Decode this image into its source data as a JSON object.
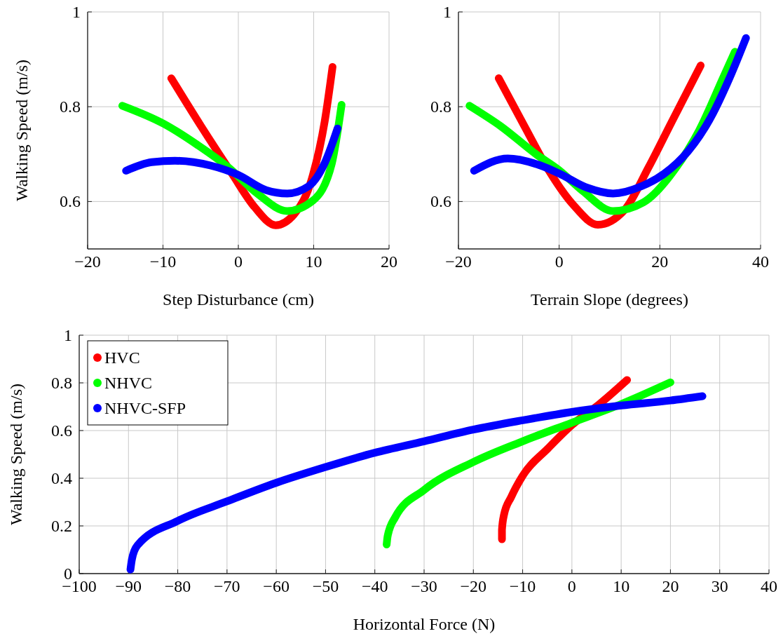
{
  "chart_data": [
    {
      "type": "line",
      "xlabel": "Step Disturbance (cm)",
      "ylabel": "Walking Speed (m/s)",
      "xlim": [
        -20,
        20
      ],
      "ylim": [
        0.5,
        1
      ],
      "xticks": [
        -20,
        -10,
        0,
        10,
        20
      ],
      "yticks": [
        0.6,
        0.8,
        1
      ],
      "grid": true,
      "legend": false,
      "series": [
        {
          "color": "#ff0000",
          "x": [
            -8.9,
            -4.95,
            -0.93,
            2.17,
            4.95,
            7.4,
            9.9,
            11.46,
            12.5
          ],
          "values": [
            0.86,
            0.759,
            0.661,
            0.588,
            0.55,
            0.573,
            0.656,
            0.769,
            0.884
          ]
        },
        {
          "color": "#00ff00",
          "x": [
            -15.4,
            -9.9,
            -5.3,
            -1.24,
            2.5,
            6.5,
            9.9,
            12.4,
            13.7
          ],
          "values": [
            0.802,
            0.764,
            0.718,
            0.671,
            0.617,
            0.58,
            0.602,
            0.68,
            0.804
          ]
        },
        {
          "color": "#0000ff",
          "x": [
            -14.9,
            -11.5,
            -8.4,
            -3.7,
            0,
            3.7,
            6.5,
            9.3,
            11.46,
            13.16
          ],
          "values": [
            0.665,
            0.683,
            0.686,
            0.676,
            0.656,
            0.624,
            0.617,
            0.632,
            0.681,
            0.754
          ]
        }
      ]
    },
    {
      "type": "line",
      "xlabel": "Terrain Slope (degrees)",
      "xlim": [
        -20,
        40
      ],
      "ylim": [
        0.5,
        1
      ],
      "xticks": [
        -20,
        0,
        20,
        40
      ],
      "yticks": [
        0.6,
        0.8,
        1
      ],
      "grid": true,
      "legend": false,
      "series": [
        {
          "color": "#ff0000",
          "x": [
            -12.0,
            -6.9,
            -1.8,
            2.8,
            7.7,
            13.05,
            17.7,
            22.4,
            28.1
          ],
          "values": [
            0.86,
            0.759,
            0.661,
            0.593,
            0.551,
            0.583,
            0.671,
            0.769,
            0.887
          ]
        },
        {
          "color": "#00ff00",
          "x": [
            -17.8,
            -11.6,
            -4.6,
            0,
            4.7,
            10.7,
            16.7,
            23.2,
            27.8,
            32.6,
            34.9
          ],
          "values": [
            0.802,
            0.759,
            0.7,
            0.666,
            0.622,
            0.58,
            0.598,
            0.671,
            0.75,
            0.862,
            0.916
          ]
        },
        {
          "color": "#0000ff",
          "x": [
            -16.9,
            -10.2,
            -3.7,
            0,
            5.6,
            10.7,
            16.3,
            20.9,
            25.6,
            30.2,
            33.9,
            37.1
          ],
          "values": [
            0.665,
            0.691,
            0.676,
            0.659,
            0.629,
            0.617,
            0.632,
            0.659,
            0.706,
            0.779,
            0.862,
            0.945
          ]
        }
      ]
    },
    {
      "type": "line",
      "xlabel": "Horizontal Force (N)",
      "ylabel": "Walking Speed (m/s)",
      "xlim": [
        -100,
        40
      ],
      "ylim": [
        0,
        1
      ],
      "xticks": [
        -100,
        -90,
        -80,
        -70,
        -60,
        -50,
        -40,
        -30,
        -20,
        -10,
        0,
        10,
        20,
        30,
        40
      ],
      "yticks": [
        0,
        0.2,
        0.4,
        0.6,
        0.8,
        1
      ],
      "grid": true,
      "legend": "top left",
      "series": [
        {
          "name": "HVC",
          "color": "#ff0000",
          "x": [
            -14.2,
            -14.2,
            -13.8,
            -12.3,
            -10,
            -4.8,
            0,
            5.6,
            11.2
          ],
          "values": [
            0.144,
            0.183,
            0.245,
            0.322,
            0.41,
            0.526,
            0.623,
            0.711,
            0.812
          ]
        },
        {
          "name": "NHVC",
          "color": "#00ff00",
          "x": [
            -37.6,
            -37.4,
            -35.9,
            -30,
            -20,
            -10,
            0,
            10,
            20
          ],
          "values": [
            0.122,
            0.157,
            0.235,
            0.351,
            0.468,
            0.555,
            0.633,
            0.711,
            0.802
          ]
        },
        {
          "name": "NHVC-SFP",
          "color": "#0000ff",
          "x": [
            -89.6,
            -89.3,
            -88.2,
            -80,
            -70,
            -60,
            -50,
            -40,
            -30,
            -20,
            -10,
            0,
            10,
            20,
            26.5
          ],
          "values": [
            0.017,
            0.06,
            0.118,
            0.221,
            0.303,
            0.381,
            0.447,
            0.507,
            0.555,
            0.604,
            0.643,
            0.678,
            0.705,
            0.726,
            0.744
          ]
        }
      ]
    }
  ]
}
